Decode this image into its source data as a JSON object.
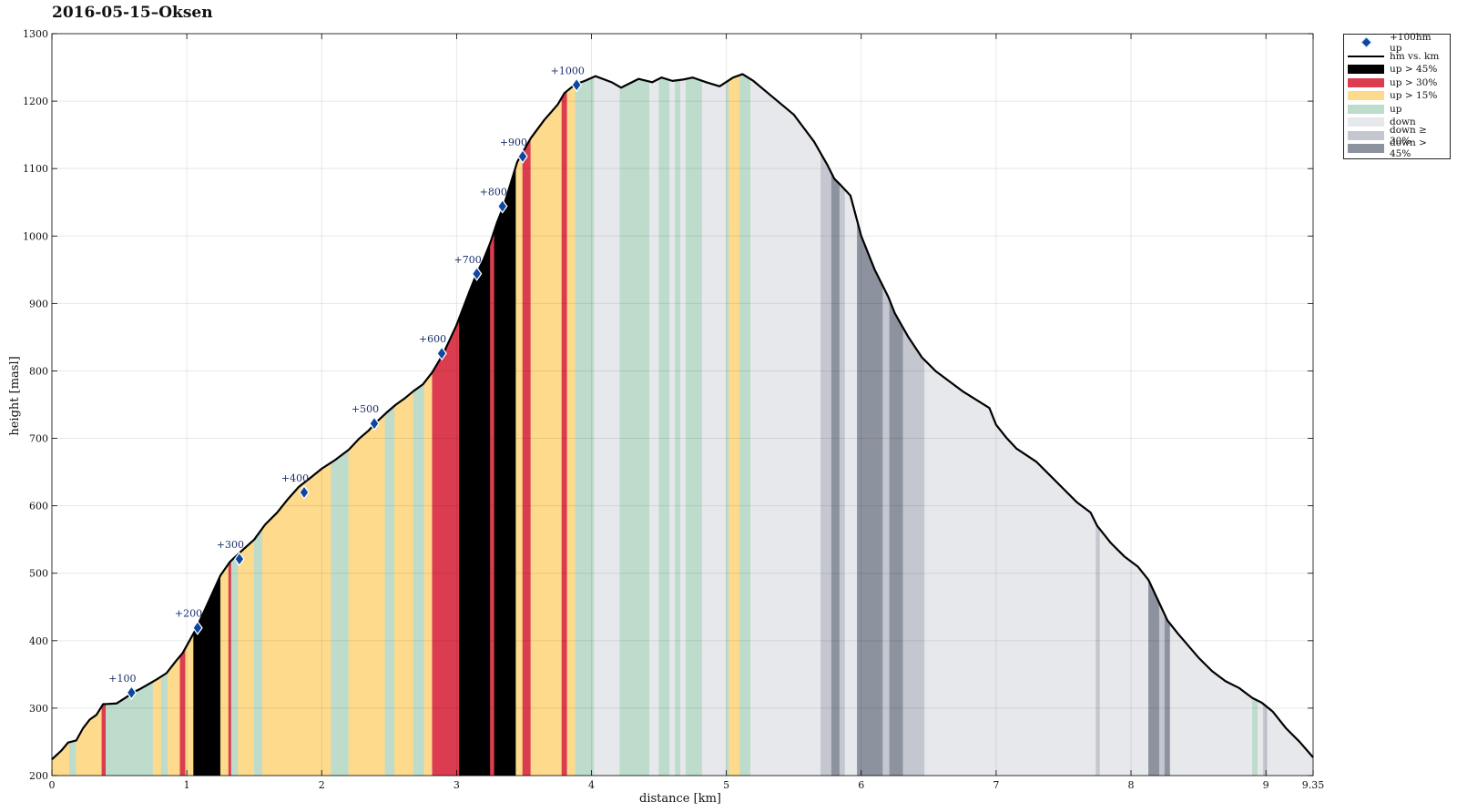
{
  "chart_data": {
    "type": "area",
    "title": "2016-05-15–Oksen",
    "xlabel": "distance [km]",
    "ylabel": "height [masl]",
    "xlim": [
      0,
      9.35
    ],
    "ylim": [
      200,
      1300
    ],
    "x_ticks": [
      0,
      1,
      2,
      3,
      4,
      5,
      6,
      7,
      8,
      9,
      9.35
    ],
    "x_tick_labels": [
      "0",
      "1",
      "2",
      "3",
      "4",
      "5",
      "6",
      "7",
      "8",
      "9",
      "9.35"
    ],
    "y_ticks": [
      200,
      300,
      400,
      500,
      600,
      700,
      800,
      900,
      1000,
      1100,
      1200,
      1300
    ],
    "grid": true,
    "legend_position": "outside-top-right",
    "colors": {
      "up_gt_45": "#000000",
      "up_gt_30": "#dc3c4f",
      "up_gt_15": "#fdda8c",
      "up": "#bddccc",
      "down": "#e7e8ec",
      "down_ge_30": "#c4c7d0",
      "down_gt_45": "#8c929e",
      "marker": "#0d47a1"
    },
    "legend": [
      {
        "key": "marker",
        "label": "+100hm up",
        "symbol": "diamond"
      },
      {
        "key": "line",
        "label": "hm vs. km",
        "symbol": "line"
      },
      {
        "key": "up_gt_45",
        "label": "up > 45%",
        "symbol": "box"
      },
      {
        "key": "up_gt_30",
        "label": "up > 30%",
        "symbol": "box"
      },
      {
        "key": "up_gt_15",
        "label": "up > 15%",
        "symbol": "box"
      },
      {
        "key": "up",
        "label": "up",
        "symbol": "box"
      },
      {
        "key": "down",
        "label": "down",
        "symbol": "box"
      },
      {
        "key": "down_ge_30",
        "label": "down ≥ 30%",
        "symbol": "box"
      },
      {
        "key": "down_gt_45",
        "label": "down > 45%",
        "symbol": "box"
      }
    ],
    "profile": {
      "x": [
        0,
        0.07,
        0.12,
        0.18,
        0.23,
        0.28,
        0.33,
        0.38,
        0.4,
        0.48,
        0.55,
        0.6,
        0.65,
        0.72,
        0.78,
        0.85,
        0.92,
        0.97,
        1.02,
        1.07,
        1.15,
        1.25,
        1.32,
        1.4,
        1.5,
        1.58,
        1.67,
        1.75,
        1.83,
        1.92,
        2.0,
        2.1,
        2.2,
        2.28,
        2.35,
        2.4,
        2.48,
        2.55,
        2.62,
        2.68,
        2.75,
        2.82,
        2.9,
        3.0,
        3.1,
        3.15,
        3.2,
        3.25,
        3.3,
        3.35,
        3.45,
        3.55,
        3.65,
        3.75,
        3.8,
        3.88,
        3.95,
        4.03,
        4.15,
        4.22,
        4.35,
        4.45,
        4.52,
        4.6,
        4.68,
        4.75,
        4.85,
        4.95,
        5.05,
        5.12,
        5.2,
        5.32,
        5.5,
        5.65,
        5.75,
        5.8,
        5.85,
        5.92,
        6.0,
        6.1,
        6.2,
        6.25,
        6.35,
        6.45,
        6.55,
        6.75,
        6.95,
        7.0,
        7.08,
        7.15,
        7.3,
        7.4,
        7.5,
        7.6,
        7.7,
        7.75,
        7.85,
        7.95,
        8.05,
        8.13,
        8.2,
        8.27,
        8.35,
        8.5,
        8.6,
        8.7,
        8.8,
        8.9,
        8.97,
        9.05,
        9.15,
        9.25,
        9.35
      ],
      "y": [
        224,
        237,
        249,
        252,
        270,
        283,
        290,
        306,
        306,
        307,
        316,
        323,
        328,
        336,
        343,
        352,
        370,
        382,
        400,
        418,
        453,
        497,
        517,
        532,
        550,
        572,
        590,
        610,
        628,
        642,
        655,
        668,
        683,
        700,
        712,
        723,
        738,
        750,
        760,
        770,
        780,
        798,
        825,
        868,
        920,
        945,
        965,
        990,
        1020,
        1045,
        1110,
        1145,
        1172,
        1195,
        1212,
        1225,
        1230,
        1237,
        1228,
        1220,
        1233,
        1228,
        1235,
        1230,
        1232,
        1235,
        1228,
        1222,
        1235,
        1240,
        1230,
        1210,
        1180,
        1140,
        1105,
        1085,
        1075,
        1060,
        1000,
        950,
        910,
        885,
        850,
        820,
        800,
        770,
        745,
        720,
        700,
        685,
        665,
        645,
        625,
        605,
        590,
        570,
        545,
        525,
        510,
        490,
        460,
        430,
        410,
        375,
        355,
        340,
        330,
        315,
        308,
        295,
        270,
        250,
        227
      ]
    },
    "segments": [
      {
        "x0": 0,
        "x1": 0.13,
        "class": "up_gt_15"
      },
      {
        "x0": 0.13,
        "x1": 0.18,
        "class": "up"
      },
      {
        "x0": 0.18,
        "x1": 0.37,
        "class": "up_gt_15"
      },
      {
        "x0": 0.37,
        "x1": 0.4,
        "class": "up_gt_30"
      },
      {
        "x0": 0.4,
        "x1": 0.6,
        "class": "up"
      },
      {
        "x0": 0.6,
        "x1": 0.75,
        "class": "up"
      },
      {
        "x0": 0.75,
        "x1": 0.81,
        "class": "up_gt_15"
      },
      {
        "x0": 0.81,
        "x1": 0.86,
        "class": "up"
      },
      {
        "x0": 0.86,
        "x1": 0.95,
        "class": "up_gt_15"
      },
      {
        "x0": 0.95,
        "x1": 0.99,
        "class": "up_gt_30"
      },
      {
        "x0": 0.99,
        "x1": 1.05,
        "class": "up_gt_15"
      },
      {
        "x0": 1.05,
        "x1": 1.25,
        "class": "up_gt_45"
      },
      {
        "x0": 1.25,
        "x1": 1.31,
        "class": "up_gt_15"
      },
      {
        "x0": 1.31,
        "x1": 1.33,
        "class": "up_gt_30"
      },
      {
        "x0": 1.33,
        "x1": 1.38,
        "class": "up"
      },
      {
        "x0": 1.38,
        "x1": 1.5,
        "class": "up_gt_15"
      },
      {
        "x0": 1.5,
        "x1": 1.56,
        "class": "up"
      },
      {
        "x0": 1.56,
        "x1": 2.07,
        "class": "up_gt_15"
      },
      {
        "x0": 2.07,
        "x1": 2.2,
        "class": "up"
      },
      {
        "x0": 2.2,
        "x1": 2.47,
        "class": "up_gt_15"
      },
      {
        "x0": 2.47,
        "x1": 2.54,
        "class": "up"
      },
      {
        "x0": 2.54,
        "x1": 2.68,
        "class": "up_gt_15"
      },
      {
        "x0": 2.68,
        "x1": 2.76,
        "class": "up"
      },
      {
        "x0": 2.76,
        "x1": 2.82,
        "class": "up_gt_15"
      },
      {
        "x0": 2.82,
        "x1": 3.02,
        "class": "up_gt_30"
      },
      {
        "x0": 3.02,
        "x1": 3.25,
        "class": "up_gt_45"
      },
      {
        "x0": 3.25,
        "x1": 3.28,
        "class": "up_gt_30"
      },
      {
        "x0": 3.28,
        "x1": 3.44,
        "class": "up_gt_45"
      },
      {
        "x0": 3.44,
        "x1": 3.49,
        "class": "up_gt_15"
      },
      {
        "x0": 3.49,
        "x1": 3.55,
        "class": "up_gt_30"
      },
      {
        "x0": 3.55,
        "x1": 3.78,
        "class": "up_gt_15"
      },
      {
        "x0": 3.78,
        "x1": 3.82,
        "class": "up_gt_30"
      },
      {
        "x0": 3.82,
        "x1": 3.88,
        "class": "up_gt_15"
      },
      {
        "x0": 3.88,
        "x1": 4.02,
        "class": "up"
      },
      {
        "x0": 4.02,
        "x1": 4.21,
        "class": "down"
      },
      {
        "x0": 4.21,
        "x1": 4.43,
        "class": "up"
      },
      {
        "x0": 4.43,
        "x1": 4.5,
        "class": "down"
      },
      {
        "x0": 4.5,
        "x1": 4.58,
        "class": "up"
      },
      {
        "x0": 4.58,
        "x1": 4.62,
        "class": "down"
      },
      {
        "x0": 4.62,
        "x1": 4.66,
        "class": "up"
      },
      {
        "x0": 4.66,
        "x1": 4.7,
        "class": "down"
      },
      {
        "x0": 4.7,
        "x1": 4.82,
        "class": "up"
      },
      {
        "x0": 4.82,
        "x1": 5.0,
        "class": "down"
      },
      {
        "x0": 5.0,
        "x1": 5.02,
        "class": "up"
      },
      {
        "x0": 5.02,
        "x1": 5.1,
        "class": "up_gt_15"
      },
      {
        "x0": 5.1,
        "x1": 5.18,
        "class": "up"
      },
      {
        "x0": 5.18,
        "x1": 5.7,
        "class": "down"
      },
      {
        "x0": 5.7,
        "x1": 5.78,
        "class": "down_ge_30"
      },
      {
        "x0": 5.78,
        "x1": 5.84,
        "class": "down_gt_45"
      },
      {
        "x0": 5.84,
        "x1": 5.88,
        "class": "down_ge_30"
      },
      {
        "x0": 5.88,
        "x1": 5.97,
        "class": "down"
      },
      {
        "x0": 5.97,
        "x1": 6.16,
        "class": "down_gt_45"
      },
      {
        "x0": 6.16,
        "x1": 6.21,
        "class": "down_ge_30"
      },
      {
        "x0": 6.21,
        "x1": 6.31,
        "class": "down_gt_45"
      },
      {
        "x0": 6.31,
        "x1": 6.47,
        "class": "down_ge_30"
      },
      {
        "x0": 6.47,
        "x1": 7.74,
        "class": "down"
      },
      {
        "x0": 7.74,
        "x1": 7.77,
        "class": "down_ge_30"
      },
      {
        "x0": 7.77,
        "x1": 8.13,
        "class": "down"
      },
      {
        "x0": 8.13,
        "x1": 8.21,
        "class": "down_gt_45"
      },
      {
        "x0": 8.21,
        "x1": 8.25,
        "class": "down_ge_30"
      },
      {
        "x0": 8.25,
        "x1": 8.29,
        "class": "down_gt_45"
      },
      {
        "x0": 8.29,
        "x1": 8.9,
        "class": "down"
      },
      {
        "x0": 8.9,
        "x1": 8.94,
        "class": "up"
      },
      {
        "x0": 8.94,
        "x1": 8.98,
        "class": "down"
      },
      {
        "x0": 8.98,
        "x1": 9.01,
        "class": "down_ge_30"
      },
      {
        "x0": 9.01,
        "x1": 9.35,
        "class": "down"
      }
    ],
    "markers": [
      {
        "x": 0.59,
        "y": 323,
        "label": "+100"
      },
      {
        "x": 1.08,
        "y": 419,
        "label": "+200"
      },
      {
        "x": 1.39,
        "y": 521,
        "label": "+300"
      },
      {
        "x": 1.87,
        "y": 620,
        "label": "+400"
      },
      {
        "x": 2.39,
        "y": 722,
        "label": "+500"
      },
      {
        "x": 2.89,
        "y": 826,
        "label": "+600"
      },
      {
        "x": 3.15,
        "y": 944,
        "label": "+700"
      },
      {
        "x": 3.34,
        "y": 1044,
        "label": "+800"
      },
      {
        "x": 3.49,
        "y": 1118,
        "label": "+900"
      },
      {
        "x": 3.89,
        "y": 1224,
        "label": "+1000"
      }
    ]
  }
}
